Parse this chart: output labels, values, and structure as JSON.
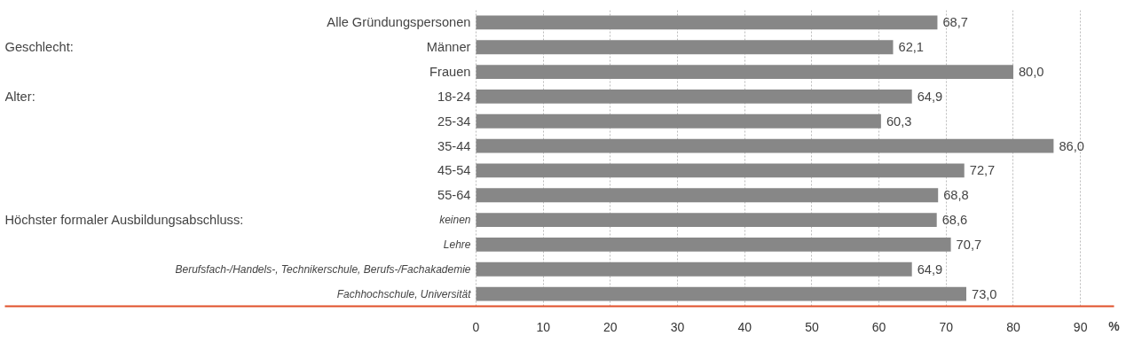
{
  "chart_data": {
    "type": "bar",
    "orientation": "horizontal",
    "categories": [
      "Alle Gründungspersonen",
      "Männer",
      "Frauen",
      "18-24",
      "25-34",
      "35-44",
      "45-54",
      "55-64",
      "keinen",
      "Lehre",
      "Berufsfach-/Handels-, Technikerschule, Berufs-/Fachakademie",
      "Fachhochschule, Universität"
    ],
    "values": [
      68.7,
      62.1,
      80.0,
      64.9,
      60.3,
      86.0,
      72.7,
      68.8,
      68.6,
      70.7,
      64.9,
      73.0
    ],
    "value_labels": [
      "68,7",
      "62,1",
      "80,0",
      "64,9",
      "60,3",
      "86,0",
      "72,7",
      "68,8",
      "68,6",
      "70,7",
      "64,9",
      "73,0"
    ],
    "color": "#878787",
    "xlim": [
      0,
      95
    ],
    "xticks": [
      0,
      10,
      20,
      30,
      40,
      50,
      60,
      70,
      80,
      90
    ],
    "xlabel": "%",
    "grid": "x",
    "data_labels": true,
    "annotations": [
      "Geschlecht:",
      "Alter:",
      "Höchster formaler Ausbildungsabschluss:"
    ]
  }
}
